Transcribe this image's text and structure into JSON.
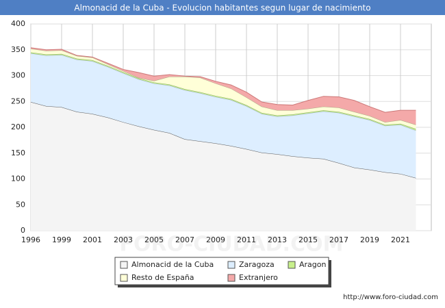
{
  "chart_data": {
    "type": "stacked-area",
    "title": "Almonacid de la Cuba - Evolucion habitantes segun lugar de nacimiento",
    "categories": [
      "1996",
      null,
      "1999",
      null,
      "2001",
      null,
      "2003",
      null,
      "2005",
      null,
      "2007",
      null,
      "2009",
      null,
      "2011",
      null,
      "2013",
      null,
      "2015",
      null,
      "2017",
      null,
      "2019",
      null,
      "2021",
      null
    ],
    "series": [
      {
        "name": "Almonacid de la Cuba",
        "color": "#f4f4f4",
        "line": "#555555",
        "values": [
          249,
          241,
          239,
          230,
          226,
          219,
          210,
          202,
          195,
          189,
          177,
          173,
          169,
          164,
          158,
          151,
          148,
          144,
          141,
          139,
          131,
          122,
          118,
          113,
          110,
          102
        ]
      },
      {
        "name": "Zaragoza",
        "color": "#ddeeff",
        "line": "#99aabb",
        "values": [
          94,
          98,
          101,
          101,
          102,
          98,
          95,
          91,
          90,
          92,
          95,
          93,
          90,
          89,
          83,
          75,
          73,
          79,
          86,
          92,
          97,
          99,
          96,
          90,
          95,
          92
        ]
      },
      {
        "name": "Aragon",
        "color": "#c8f08c",
        "line": "#88aa66",
        "values": [
          2,
          2,
          2,
          2,
          2,
          2,
          2,
          2,
          2,
          2,
          2,
          2,
          2,
          2,
          2,
          2,
          2,
          2,
          2,
          2,
          2,
          2,
          2,
          2,
          2,
          3
        ]
      },
      {
        "name": "Resto de España",
        "color": "#ffffd8",
        "line": "#aaaa88",
        "values": [
          7,
          7,
          7,
          5,
          5,
          3,
          2,
          1,
          3,
          15,
          24,
          28,
          24,
          20,
          15,
          12,
          10,
          8,
          7,
          7,
          8,
          7,
          6,
          5,
          7,
          8
        ]
      },
      {
        "name": "Extranjero",
        "color": "#f4a9a9",
        "line": "#cc7777",
        "values": [
          2,
          2,
          2,
          1,
          1,
          2,
          3,
          10,
          9,
          4,
          1,
          2,
          4,
          7,
          10,
          9,
          11,
          10,
          16,
          20,
          21,
          22,
          18,
          19,
          19,
          28
        ]
      }
    ],
    "ylim": [
      0,
      400
    ],
    "yticks": [
      0,
      50,
      100,
      150,
      200,
      250,
      300,
      350,
      400
    ],
    "grid": true,
    "watermark": "FORO-CIUDAD.COM",
    "source": "http://www.foro-ciudad.com"
  }
}
